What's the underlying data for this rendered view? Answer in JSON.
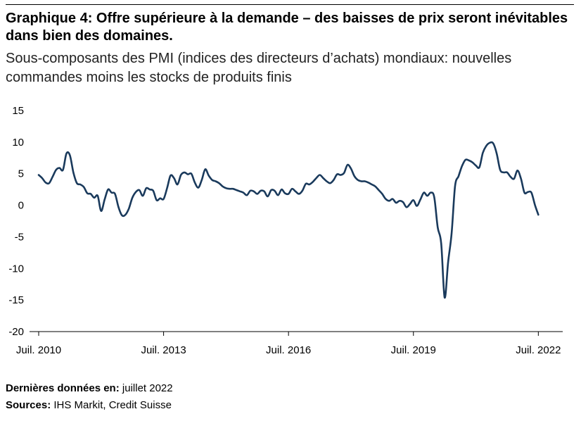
{
  "title": "Graphique 4: Offre supérieure à la demande – des baisses de prix seront inévitables dans bien des domaines.",
  "subtitle": "Sous-composants des PMI (indices des directeurs d’achats) mondiaux: nouvelles commandes moins les stocks de produits finis",
  "footer": {
    "latest_label": "Dernières données en:",
    "latest_value": "juillet 2022",
    "sources_label": "Sources:",
    "sources_value": "IHS Markit, Credit Suisse"
  },
  "colors": {
    "line": "#1a3a5c",
    "axis": "#000000",
    "rule": "#000000"
  },
  "chart_data": {
    "type": "line",
    "title": "Graphique 4: Offre supérieure à la demande – des baisses de prix seront inévitables dans bien des domaines.",
    "subtitle": "Sous-composants des PMI (indices des directeurs d’achats) mondiaux: nouvelles commandes moins les stocks de produits finis",
    "xlabel": "",
    "ylabel": "",
    "ylim": [
      -20,
      15
    ],
    "xlim": [
      "2010-07",
      "2022-12"
    ],
    "grid": false,
    "y_ticks": [
      "15",
      "10",
      "5",
      "0",
      "-5",
      "-10",
      "-15",
      "-20"
    ],
    "y_tick_values": [
      15,
      10,
      5,
      0,
      -5,
      -10,
      -15,
      -20
    ],
    "x_ticks": [
      {
        "label": "Juil. 2010",
        "date": "2010-07"
      },
      {
        "label": "Juil. 2013",
        "date": "2013-07"
      },
      {
        "label": "Juil. 2016",
        "date": "2016-07"
      },
      {
        "label": "Juil. 2019",
        "date": "2019-07"
      },
      {
        "label": "Juil. 2022",
        "date": "2022-07"
      }
    ],
    "series": [
      {
        "values": [
          [
            "2010-07",
            4.8
          ],
          [
            "2010-08",
            4.3
          ],
          [
            "2010-09",
            3.6
          ],
          [
            "2010-10",
            3.5
          ],
          [
            "2010-11",
            4.5
          ],
          [
            "2010-12",
            5.6
          ],
          [
            "2011-01",
            5.9
          ],
          [
            "2011-02",
            5.6
          ],
          [
            "2011-03",
            8.2
          ],
          [
            "2011-04",
            7.9
          ],
          [
            "2011-05",
            5.2
          ],
          [
            "2011-06",
            3.5
          ],
          [
            "2011-07",
            3.3
          ],
          [
            "2011-08",
            2.9
          ],
          [
            "2011-09",
            1.9
          ],
          [
            "2011-10",
            1.8
          ],
          [
            "2011-11",
            1.2
          ],
          [
            "2011-12",
            1.5
          ],
          [
            "2012-01",
            -0.9
          ],
          [
            "2012-02",
            0.9
          ],
          [
            "2012-03",
            2.5
          ],
          [
            "2012-04",
            2.0
          ],
          [
            "2012-05",
            1.8
          ],
          [
            "2012-06",
            -0.3
          ],
          [
            "2012-07",
            -1.6
          ],
          [
            "2012-08",
            -1.5
          ],
          [
            "2012-09",
            -0.5
          ],
          [
            "2012-10",
            1.2
          ],
          [
            "2012-11",
            2.1
          ],
          [
            "2012-12",
            2.4
          ],
          [
            "2013-01",
            1.5
          ],
          [
            "2013-02",
            2.7
          ],
          [
            "2013-03",
            2.5
          ],
          [
            "2013-04",
            2.3
          ],
          [
            "2013-05",
            0.8
          ],
          [
            "2013-06",
            1.1
          ],
          [
            "2013-07",
            1.0
          ],
          [
            "2013-08",
            2.7
          ],
          [
            "2013-09",
            4.7
          ],
          [
            "2013-10",
            4.3
          ],
          [
            "2013-11",
            3.3
          ],
          [
            "2013-12",
            4.8
          ],
          [
            "2014-01",
            5.2
          ],
          [
            "2014-02",
            4.9
          ],
          [
            "2014-03",
            5.0
          ],
          [
            "2014-04",
            3.6
          ],
          [
            "2014-05",
            2.8
          ],
          [
            "2014-06",
            4.0
          ],
          [
            "2014-07",
            5.7
          ],
          [
            "2014-08",
            4.7
          ],
          [
            "2014-09",
            4.0
          ],
          [
            "2014-10",
            3.8
          ],
          [
            "2014-11",
            3.5
          ],
          [
            "2014-12",
            3.0
          ],
          [
            "2015-01",
            2.7
          ],
          [
            "2015-02",
            2.6
          ],
          [
            "2015-03",
            2.6
          ],
          [
            "2015-04",
            2.4
          ],
          [
            "2015-05",
            2.2
          ],
          [
            "2015-06",
            2.0
          ],
          [
            "2015-07",
            1.6
          ],
          [
            "2015-08",
            2.3
          ],
          [
            "2015-09",
            2.2
          ],
          [
            "2015-10",
            1.8
          ],
          [
            "2015-11",
            2.3
          ],
          [
            "2015-12",
            2.2
          ],
          [
            "2016-01",
            1.4
          ],
          [
            "2016-02",
            2.4
          ],
          [
            "2016-03",
            2.3
          ],
          [
            "2016-04",
            1.6
          ],
          [
            "2016-05",
            2.5
          ],
          [
            "2016-06",
            1.9
          ],
          [
            "2016-07",
            1.8
          ],
          [
            "2016-08",
            2.6
          ],
          [
            "2016-09",
            2.2
          ],
          [
            "2016-10",
            1.8
          ],
          [
            "2016-11",
            2.3
          ],
          [
            "2016-12",
            3.4
          ],
          [
            "2017-01",
            3.3
          ],
          [
            "2017-02",
            3.7
          ],
          [
            "2017-03",
            4.3
          ],
          [
            "2017-04",
            4.8
          ],
          [
            "2017-05",
            4.3
          ],
          [
            "2017-06",
            3.8
          ],
          [
            "2017-07",
            3.5
          ],
          [
            "2017-08",
            4.0
          ],
          [
            "2017-09",
            4.9
          ],
          [
            "2017-10",
            4.8
          ],
          [
            "2017-11",
            5.1
          ],
          [
            "2017-12",
            6.4
          ],
          [
            "2018-01",
            5.8
          ],
          [
            "2018-02",
            4.6
          ],
          [
            "2018-03",
            4.0
          ],
          [
            "2018-04",
            3.8
          ],
          [
            "2018-05",
            3.8
          ],
          [
            "2018-06",
            3.6
          ],
          [
            "2018-07",
            3.3
          ],
          [
            "2018-08",
            3.0
          ],
          [
            "2018-09",
            2.4
          ],
          [
            "2018-10",
            1.8
          ],
          [
            "2018-11",
            1.0
          ],
          [
            "2018-12",
            0.7
          ],
          [
            "2019-01",
            1.0
          ],
          [
            "2019-02",
            0.4
          ],
          [
            "2019-03",
            0.7
          ],
          [
            "2019-04",
            0.5
          ],
          [
            "2019-05",
            -0.3
          ],
          [
            "2019-06",
            0.2
          ],
          [
            "2019-07",
            0.8
          ],
          [
            "2019-08",
            -0.1
          ],
          [
            "2019-09",
            0.9
          ],
          [
            "2019-10",
            2.0
          ],
          [
            "2019-11",
            1.5
          ],
          [
            "2019-12",
            2.0
          ],
          [
            "2020-01",
            1.3
          ],
          [
            "2020-02",
            -3.5
          ],
          [
            "2020-03",
            -6.0
          ],
          [
            "2020-04",
            -14.6
          ],
          [
            "2020-05",
            -9.0
          ],
          [
            "2020-06",
            -4.5
          ],
          [
            "2020-07",
            3.0
          ],
          [
            "2020-08",
            4.6
          ],
          [
            "2020-09",
            6.2
          ],
          [
            "2020-10",
            7.2
          ],
          [
            "2020-11",
            7.1
          ],
          [
            "2020-12",
            6.8
          ],
          [
            "2021-01",
            6.3
          ],
          [
            "2021-02",
            6.0
          ],
          [
            "2021-03",
            8.3
          ],
          [
            "2021-04",
            9.4
          ],
          [
            "2021-05",
            9.9
          ],
          [
            "2021-06",
            9.8
          ],
          [
            "2021-07",
            8.2
          ],
          [
            "2021-08",
            5.6
          ],
          [
            "2021-09",
            5.2
          ],
          [
            "2021-10",
            5.2
          ],
          [
            "2021-11",
            4.5
          ],
          [
            "2021-12",
            4.2
          ],
          [
            "2022-01",
            5.5
          ],
          [
            "2022-02",
            4.2
          ],
          [
            "2022-03",
            2.0
          ],
          [
            "2022-04",
            2.1
          ],
          [
            "2022-05",
            2.0
          ],
          [
            "2022-06",
            0.1
          ],
          [
            "2022-07",
            -1.5
          ]
        ]
      }
    ]
  }
}
